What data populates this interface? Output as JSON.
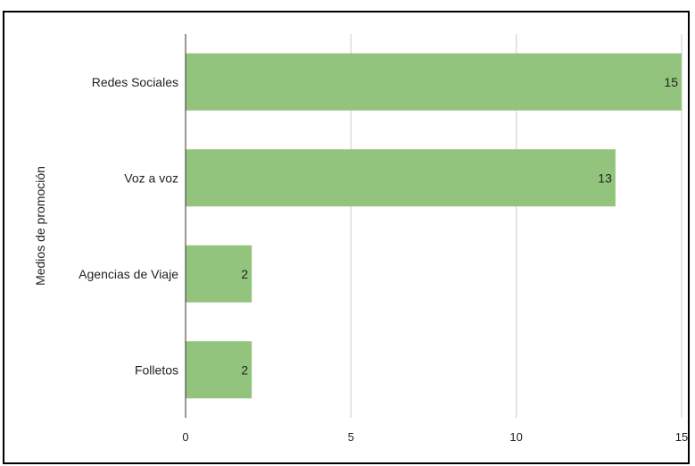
{
  "chart_data": {
    "type": "bar",
    "orientation": "horizontal",
    "categories": [
      "Redes Sociales",
      "Voz a voz",
      "Agencias de Viaje",
      "Folletos"
    ],
    "values": [
      15,
      13,
      2,
      2
    ],
    "title": "",
    "xlabel": "",
    "ylabel": "Medios de promoción",
    "xlim": [
      0,
      15
    ],
    "xticks": [
      0,
      5,
      10,
      15
    ],
    "grid": true,
    "legend": "none",
    "data_labels": true,
    "bar_color": "#93c47d"
  }
}
